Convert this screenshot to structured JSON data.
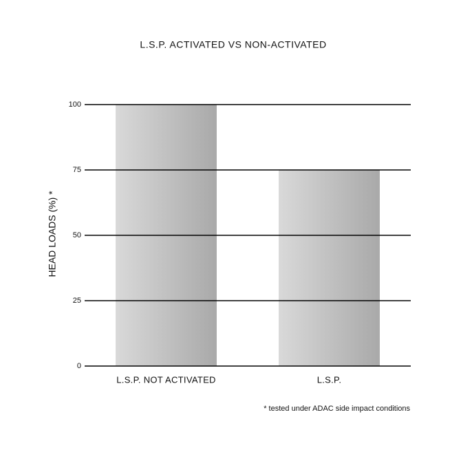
{
  "chart_data": {
    "type": "bar",
    "title": "L.S.P. ACTIVATED VS NON-ACTIVATED",
    "y_label": "HEAD LOADS (%) *",
    "categories": [
      "L.S.P. NOT ACTIVATED",
      "L.S.P."
    ],
    "values": [
      100,
      75
    ],
    "ylim": [
      0,
      100
    ],
    "yticks": [
      0,
      25,
      50,
      75,
      100
    ],
    "grid": true,
    "note": "* tested under ADAC side impact conditions"
  }
}
